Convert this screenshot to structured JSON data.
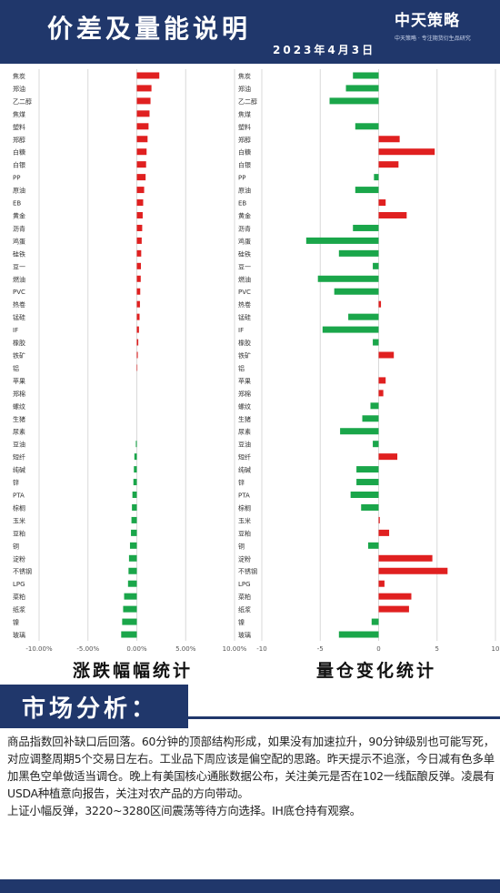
{
  "header": {
    "title": "价差及量能说明",
    "date": "2023年4月3日",
    "logo_text": "中天策略",
    "logo_sub": "中天策略 · 专注期货衍生品研究"
  },
  "captions": {
    "left": "涨跌幅幅统计",
    "right": "量仓变化统计"
  },
  "market": {
    "title": "市场分析："
  },
  "analysis": {
    "p1": "商品指数回补缺口后回落。60分钟的顶部结构形成，如果没有加速拉升，90分钟级别也可能写死，对应调整周期5个交易日左右。工业品下周应该是偏空配的思路。昨天提示不追涨，今日减有色多单加黑色空单做适当调仓。晚上有美国核心通胀数据公布，关注美元是否在102一线酝酿反弹。凌晨有USDA种植意向报告，关注对农产品的方向带动。",
    "p2": "上证小幅反弹，3220~3280区间震荡等待方向选择。IH底仓持有观察。"
  },
  "colors": {
    "navy": "#20376b",
    "up": "#e02020",
    "down": "#1aa64a"
  },
  "chart_data": [
    {
      "type": "bar",
      "orientation": "horizontal",
      "categories": [
        "焦炭",
        "郑油",
        "乙二醇",
        "焦煤",
        "塑料",
        "郑醇",
        "白糖",
        "白银",
        "PP",
        "原油",
        "EB",
        "黄金",
        "沥青",
        "鸡蛋",
        "硅铁",
        "豆一",
        "燃油",
        "PVC",
        "热卷",
        "锰硅",
        "IF",
        "橡胶",
        "铁矿",
        "铝",
        "苹果",
        "郑棉",
        "螺纹",
        "生猪",
        "尿素",
        "豆油",
        "短纤",
        "纯碱",
        "锌",
        "PTA",
        "棕榈",
        "玉米",
        "豆粕",
        "铜",
        "淀粉",
        "不锈钢",
        "LPG",
        "菜粕",
        "纸浆",
        "镍",
        "玻璃"
      ],
      "values": [
        2.3,
        1.5,
        1.4,
        1.3,
        1.2,
        1.1,
        1.0,
        0.95,
        0.9,
        0.75,
        0.65,
        0.6,
        0.55,
        0.5,
        0.45,
        0.42,
        0.4,
        0.35,
        0.32,
        0.28,
        0.22,
        0.15,
        0.1,
        0.05,
        0.0,
        0.0,
        0.0,
        0.0,
        0.0,
        -0.1,
        -0.25,
        -0.3,
        -0.35,
        -0.45,
        -0.5,
        -0.55,
        -0.6,
        -0.7,
        -0.8,
        -0.85,
        -0.9,
        -1.3,
        -1.4,
        -1.5,
        -1.6
      ],
      "xlim": [
        -10,
        10
      ],
      "ticks": [
        "-10.00%",
        "-5.00%",
        "0.00%",
        "5.00%",
        "10.00%"
      ],
      "grid": true
    },
    {
      "type": "bar",
      "orientation": "horizontal",
      "categories": [
        "焦炭",
        "郑油",
        "乙二醇",
        "焦煤",
        "塑料",
        "郑醇",
        "白糖",
        "白银",
        "PP",
        "原油",
        "EB",
        "黄金",
        "沥青",
        "鸡蛋",
        "硅铁",
        "豆一",
        "燃油",
        "PVC",
        "热卷",
        "锰硅",
        "IF",
        "橡胶",
        "铁矿",
        "铝",
        "苹果",
        "郑棉",
        "螺纹",
        "生猪",
        "尿素",
        "豆油",
        "短纤",
        "纯碱",
        "锌",
        "PTA",
        "棕榈",
        "玉米",
        "豆粕",
        "铜",
        "淀粉",
        "不锈钢",
        "LPG",
        "菜粕",
        "纸浆",
        "镍",
        "玻璃"
      ],
      "values": [
        -2.2,
        -2.8,
        -4.2,
        0.0,
        -2.0,
        1.8,
        4.8,
        1.7,
        -0.4,
        -2.0,
        0.6,
        2.4,
        -2.2,
        -6.2,
        -3.4,
        -0.5,
        -5.2,
        -3.8,
        0.2,
        -2.6,
        -4.8,
        -0.5,
        1.3,
        0.0,
        0.6,
        0.4,
        -0.7,
        -1.4,
        -3.3,
        -0.5,
        1.6,
        -1.9,
        -1.9,
        -2.4,
        -1.5,
        0.1,
        0.9,
        -0.9,
        4.6,
        5.9,
        0.5,
        2.8,
        2.6,
        -0.6,
        -3.4
      ],
      "xlim": [
        -10,
        10
      ],
      "ticks": [
        "-10",
        "-5",
        "0",
        "5",
        "10"
      ],
      "grid": true
    }
  ]
}
